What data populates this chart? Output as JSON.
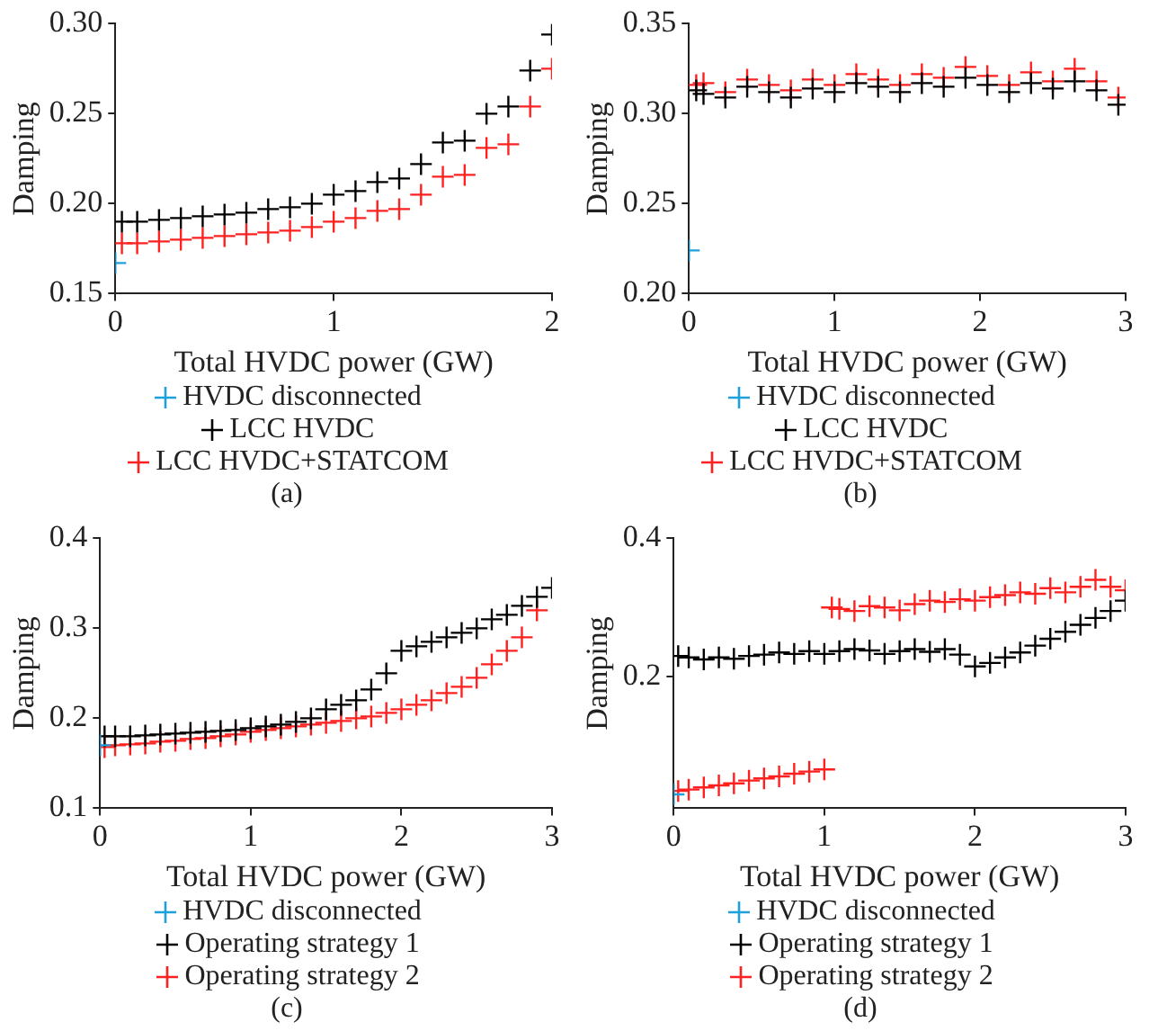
{
  "chart_data": [
    {
      "type": "scatter",
      "xlabel": "Total HVDC power (GW)",
      "ylabel": "Damping",
      "xlim": [
        0,
        2
      ],
      "xticks": [
        0,
        1,
        2
      ],
      "ylim": [
        0.15,
        0.3
      ],
      "yticks": [
        {
          "value": 0.15,
          "label": "0.15"
        },
        {
          "value": 0.2,
          "label": "0.20"
        },
        {
          "value": 0.25,
          "label": "0.25"
        },
        {
          "value": 0.3,
          "label": "0.30"
        }
      ],
      "grid": false,
      "legend": "bottom",
      "annotations": [
        "(a)"
      ],
      "series": [
        {
          "name": "HVDC disconnected",
          "color": "#1ea0dc",
          "marker": "cross",
          "x": [
            0
          ],
          "values": [
            0.167
          ]
        },
        {
          "name": "LCC HVDC",
          "color": "#000000",
          "marker": "cross",
          "x": [
            0.03,
            0.1,
            0.2,
            0.3,
            0.4,
            0.5,
            0.6,
            0.7,
            0.8,
            0.9,
            1.0,
            1.1,
            1.2,
            1.3,
            1.4,
            1.5,
            1.6,
            1.7,
            1.8,
            1.9,
            2.0
          ],
          "values": [
            0.19,
            0.19,
            0.191,
            0.192,
            0.193,
            0.194,
            0.195,
            0.197,
            0.198,
            0.2,
            0.205,
            0.207,
            0.212,
            0.214,
            0.222,
            0.234,
            0.235,
            0.25,
            0.254,
            0.274,
            0.294
          ]
        },
        {
          "name": "LCC HVDC+STATCOM",
          "color": "#ff2020",
          "marker": "cross",
          "x": [
            0.03,
            0.1,
            0.2,
            0.3,
            0.4,
            0.5,
            0.6,
            0.7,
            0.8,
            0.9,
            1.0,
            1.1,
            1.2,
            1.3,
            1.4,
            1.5,
            1.6,
            1.7,
            1.8,
            1.9,
            2.0
          ],
          "values": [
            0.178,
            0.178,
            0.179,
            0.18,
            0.181,
            0.182,
            0.183,
            0.184,
            0.185,
            0.187,
            0.19,
            0.192,
            0.196,
            0.197,
            0.205,
            0.215,
            0.216,
            0.231,
            0.233,
            0.254,
            0.275
          ]
        }
      ]
    },
    {
      "type": "scatter",
      "xlabel": "Total HVDC power (GW)",
      "ylabel": "Damping",
      "xlim": [
        0,
        3
      ],
      "xticks": [
        0,
        1,
        2,
        3
      ],
      "ylim": [
        0.2,
        0.35
      ],
      "yticks": [
        {
          "value": 0.2,
          "label": "0.20"
        },
        {
          "value": 0.25,
          "label": "0.25"
        },
        {
          "value": 0.3,
          "label": "0.30"
        },
        {
          "value": 0.35,
          "label": "0.35"
        }
      ],
      "grid": false,
      "legend": "bottom",
      "annotations": [
        "(b)"
      ],
      "series": [
        {
          "name": "HVDC disconnected",
          "color": "#1ea0dc",
          "marker": "cross",
          "x": [
            0
          ],
          "values": [
            0.224
          ]
        },
        {
          "name": "LCC HVDC",
          "color": "#000000",
          "marker": "cross",
          "x": [
            0.05,
            0.1,
            0.25,
            0.4,
            0.55,
            0.7,
            0.85,
            1.0,
            1.15,
            1.3,
            1.45,
            1.6,
            1.75,
            1.9,
            2.05,
            2.2,
            2.35,
            2.5,
            2.65,
            2.8,
            2.95
          ],
          "values": [
            0.313,
            0.311,
            0.309,
            0.315,
            0.312,
            0.309,
            0.314,
            0.312,
            0.317,
            0.315,
            0.312,
            0.317,
            0.315,
            0.32,
            0.316,
            0.312,
            0.317,
            0.314,
            0.318,
            0.313,
            0.305
          ]
        },
        {
          "name": "LCC HVDC+STATCOM",
          "color": "#ff2020",
          "marker": "cross",
          "x": [
            0.05,
            0.1,
            0.25,
            0.4,
            0.55,
            0.7,
            0.85,
            1.0,
            1.15,
            1.3,
            1.45,
            1.6,
            1.75,
            1.9,
            2.05,
            2.2,
            2.35,
            2.5,
            2.65,
            2.8,
            2.95
          ],
          "values": [
            0.316,
            0.317,
            0.312,
            0.319,
            0.316,
            0.313,
            0.319,
            0.316,
            0.322,
            0.319,
            0.316,
            0.322,
            0.32,
            0.326,
            0.321,
            0.316,
            0.323,
            0.318,
            0.325,
            0.318,
            0.309
          ]
        }
      ]
    },
    {
      "type": "scatter",
      "xlabel": "Total HVDC power (GW)",
      "ylabel": "Damping",
      "xlim": [
        0,
        3
      ],
      "xticks": [
        0,
        1,
        2,
        3
      ],
      "ylim": [
        0.1,
        0.4
      ],
      "yticks": [
        0.1,
        0.2,
        0.3,
        0.4
      ],
      "grid": false,
      "legend": "bottom",
      "annotations": [
        "(c)"
      ],
      "series": [
        {
          "name": "HVDC disconnected",
          "color": "#1ea0dc",
          "marker": "cross",
          "x": [
            0
          ],
          "values": [
            0.17
          ]
        },
        {
          "name": "Operating strategy 1",
          "color": "#000000",
          "marker": "cross",
          "x": [
            0.03,
            0.1,
            0.2,
            0.3,
            0.4,
            0.5,
            0.6,
            0.7,
            0.8,
            0.9,
            1.0,
            1.1,
            1.2,
            1.3,
            1.4,
            1.5,
            1.6,
            1.7,
            1.8,
            1.9,
            2.0,
            2.1,
            2.2,
            2.3,
            2.4,
            2.5,
            2.6,
            2.7,
            2.8,
            2.9,
            3.0
          ],
          "values": [
            0.18,
            0.18,
            0.18,
            0.181,
            0.182,
            0.183,
            0.184,
            0.185,
            0.186,
            0.187,
            0.189,
            0.191,
            0.193,
            0.196,
            0.2,
            0.21,
            0.215,
            0.22,
            0.232,
            0.25,
            0.275,
            0.28,
            0.285,
            0.29,
            0.295,
            0.3,
            0.31,
            0.315,
            0.325,
            0.335,
            0.345
          ]
        },
        {
          "name": "Operating strategy 2",
          "color": "#ff2020",
          "marker": "cross",
          "x": [
            0.03,
            0.1,
            0.2,
            0.3,
            0.4,
            0.5,
            0.6,
            0.7,
            0.8,
            0.9,
            1.0,
            1.1,
            1.2,
            1.3,
            1.4,
            1.5,
            1.6,
            1.7,
            1.8,
            1.9,
            2.0,
            2.1,
            2.2,
            2.3,
            2.4,
            2.5,
            2.6,
            2.7,
            2.8,
            2.9
          ],
          "values": [
            0.168,
            0.17,
            0.171,
            0.172,
            0.174,
            0.175,
            0.177,
            0.178,
            0.18,
            0.182,
            0.185,
            0.187,
            0.189,
            0.191,
            0.193,
            0.195,
            0.197,
            0.2,
            0.202,
            0.206,
            0.21,
            0.215,
            0.22,
            0.228,
            0.235,
            0.245,
            0.26,
            0.275,
            0.29,
            0.32
          ]
        }
      ]
    },
    {
      "type": "scatter",
      "xlabel": "Total HVDC power (GW)",
      "ylabel": "Damping",
      "xlim": [
        0,
        3
      ],
      "xticks": [
        0,
        1,
        2,
        3
      ],
      "ylim": [
        0.01,
        0.4
      ],
      "yticks": [
        0.2,
        0.4
      ],
      "grid": false,
      "legend": "bottom",
      "annotations": [
        "(d)"
      ],
      "series": [
        {
          "name": "HVDC disconnected",
          "color": "#1ea0dc",
          "marker": "cross",
          "x": [
            0
          ],
          "values": [
            0.03
          ]
        },
        {
          "name": "Operating strategy 1",
          "color": "#000000",
          "marker": "cross",
          "x": [
            0.03,
            0.1,
            0.2,
            0.3,
            0.4,
            0.5,
            0.6,
            0.7,
            0.8,
            0.9,
            1.0,
            1.1,
            1.2,
            1.3,
            1.4,
            1.5,
            1.6,
            1.7,
            1.8,
            1.9,
            2.0,
            2.1,
            2.2,
            2.3,
            2.4,
            2.5,
            2.6,
            2.7,
            2.8,
            2.9,
            3.0
          ],
          "values": [
            0.23,
            0.228,
            0.225,
            0.228,
            0.226,
            0.23,
            0.232,
            0.235,
            0.233,
            0.237,
            0.233,
            0.237,
            0.24,
            0.238,
            0.233,
            0.237,
            0.24,
            0.236,
            0.24,
            0.232,
            0.215,
            0.22,
            0.228,
            0.235,
            0.245,
            0.255,
            0.265,
            0.275,
            0.285,
            0.295,
            0.31
          ]
        },
        {
          "name": "Operating strategy 2",
          "color": "#ff2020",
          "marker": "cross",
          "x": [
            0.03,
            0.1,
            0.2,
            0.3,
            0.4,
            0.5,
            0.6,
            0.7,
            0.8,
            0.9,
            1.0,
            1.05,
            1.1,
            1.2,
            1.3,
            1.4,
            1.5,
            1.6,
            1.7,
            1.8,
            1.9,
            2.0,
            2.1,
            2.2,
            2.3,
            2.4,
            2.5,
            2.6,
            2.7,
            2.8,
            2.9,
            3.0
          ],
          "values": [
            0.035,
            0.037,
            0.04,
            0.043,
            0.046,
            0.05,
            0.053,
            0.056,
            0.06,
            0.063,
            0.066,
            0.3,
            0.298,
            0.295,
            0.302,
            0.3,
            0.296,
            0.305,
            0.31,
            0.308,
            0.312,
            0.31,
            0.315,
            0.318,
            0.322,
            0.32,
            0.328,
            0.322,
            0.33,
            0.34,
            0.33,
            0.325
          ]
        }
      ]
    }
  ]
}
